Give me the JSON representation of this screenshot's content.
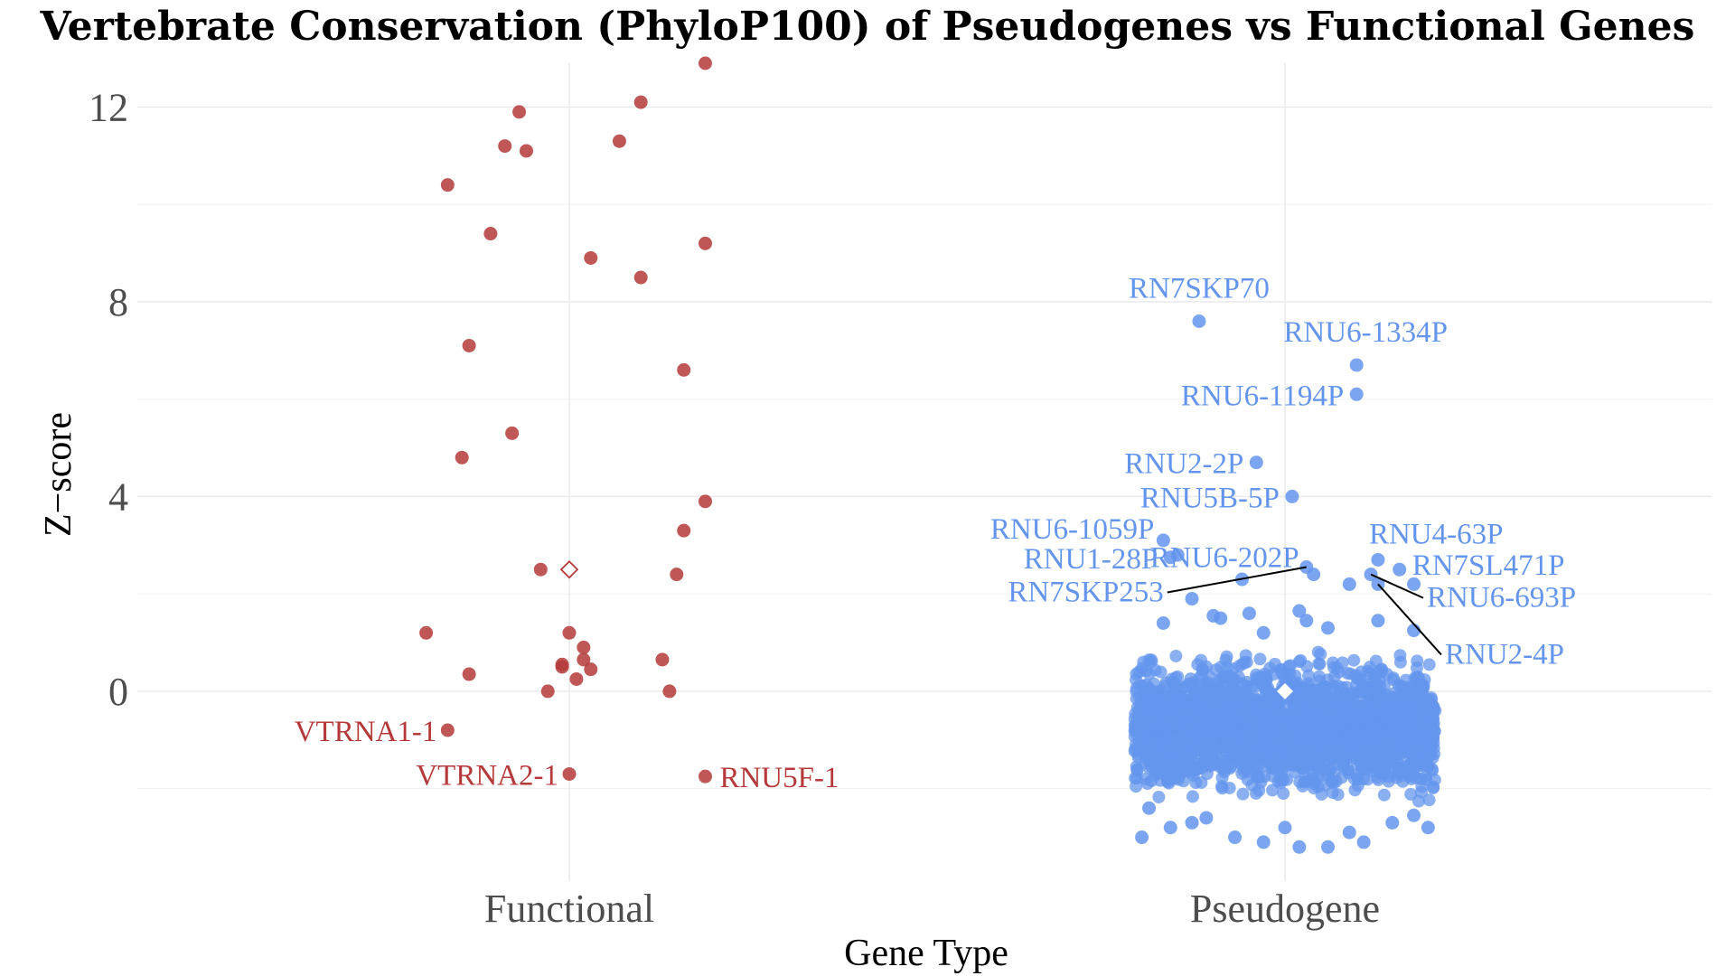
{
  "chart_data": {
    "type": "scatter",
    "title": "Vertebrate Conservation (PhyloP100) of Pseudogenes vs Functional Genes",
    "xlabel": "Gene Type",
    "ylabel": "Z−score",
    "categories": [
      "Functional",
      "Pseudogene"
    ],
    "ylim": [
      -3.9,
      12.9
    ],
    "yticks": [
      0,
      4,
      8,
      12
    ],
    "grid": true,
    "colors": {
      "Functional": "#b5393a",
      "Pseudogene": "#6495ed",
      "text": "#4d4d4d"
    },
    "series": [
      {
        "category": "Functional",
        "points": [
          {
            "x": 0.19,
            "y": 12.9
          },
          {
            "x": 0.1,
            "y": 12.1
          },
          {
            "x": -0.07,
            "y": 11.9
          },
          {
            "x": -0.09,
            "y": 11.2
          },
          {
            "x": -0.06,
            "y": 11.1
          },
          {
            "x": 0.07,
            "y": 11.3
          },
          {
            "x": -0.17,
            "y": 10.4
          },
          {
            "x": -0.11,
            "y": 9.4
          },
          {
            "x": 0.19,
            "y": 9.2
          },
          {
            "x": 0.03,
            "y": 8.9
          },
          {
            "x": 0.1,
            "y": 8.5
          },
          {
            "x": -0.14,
            "y": 7.1
          },
          {
            "x": 0.16,
            "y": 6.6
          },
          {
            "x": -0.08,
            "y": 5.3
          },
          {
            "x": -0.15,
            "y": 4.8
          },
          {
            "x": 0.19,
            "y": 3.9
          },
          {
            "x": 0.16,
            "y": 3.3
          },
          {
            "x": -0.04,
            "y": 2.5
          },
          {
            "x": 0.15,
            "y": 2.4
          },
          {
            "x": -0.2,
            "y": 1.2
          },
          {
            "x": 0.0,
            "y": 1.2
          },
          {
            "x": 0.02,
            "y": 0.9
          },
          {
            "x": 0.02,
            "y": 0.65
          },
          {
            "x": 0.13,
            "y": 0.65
          },
          {
            "x": -0.01,
            "y": 0.55
          },
          {
            "x": -0.01,
            "y": 0.5
          },
          {
            "x": 0.03,
            "y": 0.45
          },
          {
            "x": -0.14,
            "y": 0.35
          },
          {
            "x": 0.01,
            "y": 0.25
          },
          {
            "x": -0.03,
            "y": 0.0
          },
          {
            "x": 0.14,
            "y": 0.0
          },
          {
            "x": -0.17,
            "y": -0.8
          },
          {
            "x": 0.0,
            "y": -1.7
          },
          {
            "x": 0.19,
            "y": -1.75
          }
        ],
        "mean": 2.5,
        "labels": [
          {
            "text": "VTRNA1-1",
            "x": -0.17,
            "y": -0.8
          },
          {
            "text": "VTRNA2-1",
            "x": 0.0,
            "y": -1.7
          },
          {
            "text": "RNU5F-1",
            "x": 0.19,
            "y": -1.75
          }
        ]
      },
      {
        "category": "Pseudogene",
        "mean": 0.0,
        "bulk_range": {
          "x": [
            -0.21,
            0.21
          ],
          "y": [
            -2.4,
            0.95
          ]
        },
        "bulk_count": 2300,
        "points": [
          {
            "x": -0.12,
            "y": 7.6
          },
          {
            "x": 0.1,
            "y": 6.7
          },
          {
            "x": 0.1,
            "y": 6.1
          },
          {
            "x": -0.04,
            "y": 4.7
          },
          {
            "x": 0.01,
            "y": 4.0
          },
          {
            "x": -0.17,
            "y": 3.1
          },
          {
            "x": -0.15,
            "y": 2.8
          },
          {
            "x": -0.16,
            "y": 2.75
          },
          {
            "x": 0.13,
            "y": 2.7
          },
          {
            "x": 0.16,
            "y": 2.5
          },
          {
            "x": 0.04,
            "y": 2.4
          },
          {
            "x": 0.12,
            "y": 2.4
          },
          {
            "x": -0.06,
            "y": 2.3
          },
          {
            "x": 0.03,
            "y": 2.55
          },
          {
            "x": 0.18,
            "y": 2.2
          },
          {
            "x": 0.09,
            "y": 2.2
          },
          {
            "x": 0.13,
            "y": 2.2
          },
          {
            "x": -0.13,
            "y": 1.9
          },
          {
            "x": -0.17,
            "y": 1.4
          },
          {
            "x": -0.09,
            "y": 1.5
          },
          {
            "x": -0.05,
            "y": 1.6
          },
          {
            "x": -0.03,
            "y": 1.2
          },
          {
            "x": 0.03,
            "y": 1.45
          },
          {
            "x": 0.06,
            "y": 1.3
          },
          {
            "x": 0.13,
            "y": 1.45
          },
          {
            "x": 0.18,
            "y": 1.25
          },
          {
            "x": -0.1,
            "y": 1.55
          },
          {
            "x": 0.02,
            "y": 1.65
          },
          {
            "x": -0.2,
            "y": -3.0
          },
          {
            "x": -0.16,
            "y": -2.8
          },
          {
            "x": -0.13,
            "y": -2.7
          },
          {
            "x": -0.07,
            "y": -3.0
          },
          {
            "x": -0.03,
            "y": -3.1
          },
          {
            "x": 0.0,
            "y": -2.8
          },
          {
            "x": 0.02,
            "y": -3.2
          },
          {
            "x": 0.06,
            "y": -3.2
          },
          {
            "x": 0.11,
            "y": -3.1
          },
          {
            "x": 0.15,
            "y": -2.7
          },
          {
            "x": 0.2,
            "y": -2.8
          },
          {
            "x": -0.11,
            "y": -2.6
          },
          {
            "x": 0.09,
            "y": -2.9
          },
          {
            "x": -0.19,
            "y": -2.4
          },
          {
            "x": 0.18,
            "y": -2.55
          }
        ],
        "labels": [
          {
            "text": "RN7SKP70",
            "x": -0.12,
            "y": 7.6
          },
          {
            "text": "RNU6-1334P",
            "x": 0.1,
            "y": 6.7
          },
          {
            "text": "RNU6-1194P",
            "x": 0.1,
            "y": 6.1
          },
          {
            "text": "RNU2-2P",
            "x": -0.04,
            "y": 4.7
          },
          {
            "text": "RNU5B-5P",
            "x": 0.01,
            "y": 4.0
          },
          {
            "text": "RNU6-1059P",
            "x": -0.17,
            "y": 3.1
          },
          {
            "text": "RNU4-63P",
            "x": 0.13,
            "y": 2.7
          },
          {
            "text": "RNU1-28P",
            "x": -0.16,
            "y": 2.75
          },
          {
            "text": "RNU6-202P",
            "x": 0.04,
            "y": 2.4
          },
          {
            "text": "RN7SL471P",
            "x": 0.16,
            "y": 2.5
          },
          {
            "text": "RN7SKP253",
            "x": 0.03,
            "y": 2.55
          },
          {
            "text": "RNU6-693P",
            "x": 0.12,
            "y": 2.4
          },
          {
            "text": "RNU2-4P",
            "x": 0.13,
            "y": 2.2
          }
        ]
      }
    ]
  }
}
